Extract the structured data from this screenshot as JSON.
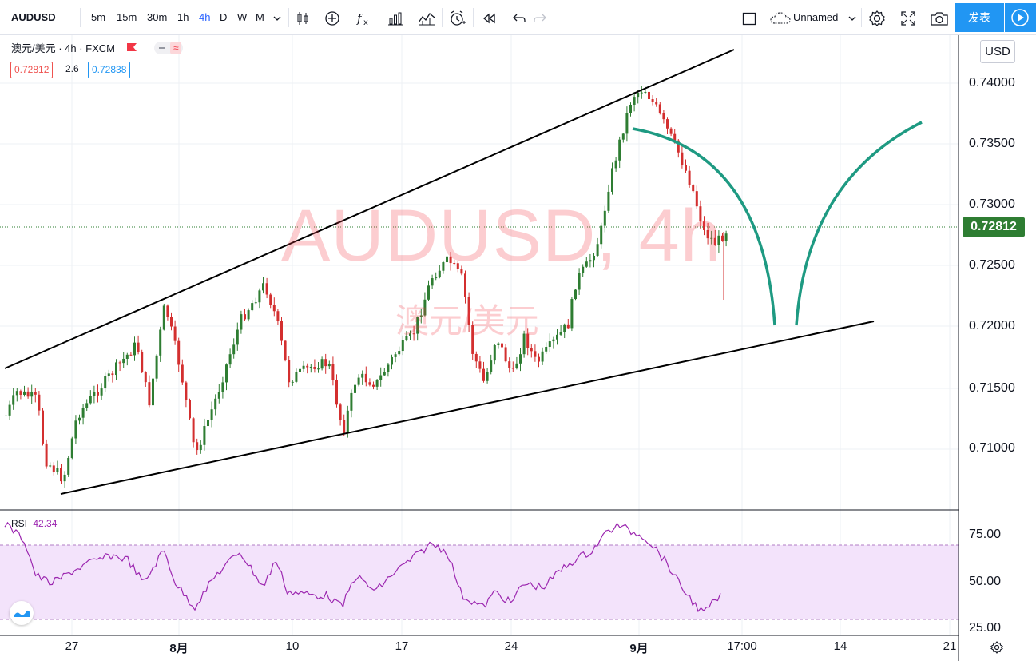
{
  "toolbar": {
    "symbol": "AUDUSD",
    "intervals": [
      "5m",
      "15m",
      "30m",
      "1h",
      "4h",
      "D",
      "W",
      "M"
    ],
    "active_interval": "4h",
    "layout_name": "Unnamed",
    "publish_label": "发表"
  },
  "legend": {
    "title": "澳元/美元 · 4h · FXCM",
    "bid": "0.72812",
    "spread": "2.6",
    "ask": "0.72838"
  },
  "watermark": {
    "symbol": "AUDUSD, 4h",
    "name": "澳元/美元"
  },
  "price_axis": {
    "currency": "USD",
    "labels": [
      "0.74000",
      "0.73500",
      "0.73000",
      "0.72500",
      "0.72000",
      "0.71500",
      "0.71000"
    ],
    "last_price": "0.72812"
  },
  "rsi": {
    "label": "RSI",
    "value": "42.34",
    "labels": [
      "75.00",
      "50.00",
      "25.00"
    ]
  },
  "time_axis": {
    "labels": [
      "27",
      "8月",
      "10",
      "17",
      "24",
      "9月",
      "17:00",
      "14",
      "21"
    ]
  },
  "colors": {
    "up": "#2e7d32",
    "down": "#d32f2f",
    "projection": "#1e9a82",
    "rsi_line": "#9c27b0",
    "rsi_band": "#f3e3fb",
    "accent": "#2196f3"
  }
}
